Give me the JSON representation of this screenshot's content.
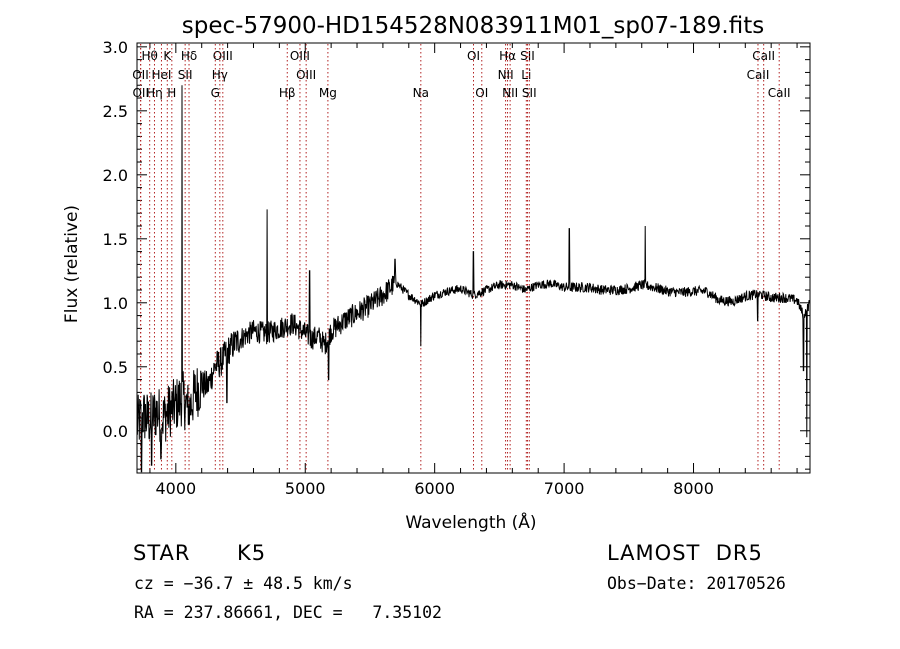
{
  "chart_data": {
    "type": "line",
    "title": "spec-57900-HD154528N083911M01_sp07-189.fits",
    "xlabel": "Wavelength (Å)",
    "ylabel": "Flux (relative)",
    "xlim": [
      3700,
      8900
    ],
    "ylim": [
      -0.33,
      3.03
    ],
    "xticks": [
      4000,
      5000,
      6000,
      7000,
      8000
    ],
    "yticks": [
      0.0,
      0.5,
      1.0,
      1.5,
      2.0,
      2.5,
      3.0
    ],
    "xtick_labels": [
      "4000",
      "5000",
      "6000",
      "7000",
      "8000"
    ],
    "ytick_labels": [
      "0.0",
      "0.5",
      "1.0",
      "1.5",
      "2.0",
      "2.5",
      "3.0"
    ],
    "grid": false,
    "line_colors": {
      "spectrum": "#000000",
      "lines": "#b22222"
    },
    "line_markers": [
      {
        "label": "Hθ",
        "wavelength": 3798,
        "row": 0
      },
      {
        "label": "K",
        "wavelength": 3934,
        "row": 0
      },
      {
        "label": "Hδ",
        "wavelength": 4102,
        "row": 0
      },
      {
        "label": "OIII",
        "wavelength": 4363,
        "row": 0
      },
      {
        "label": "OIII",
        "wavelength": 4959,
        "row": 0
      },
      {
        "label": "OI",
        "wavelength": 6300,
        "row": 0
      },
      {
        "label": "Hα",
        "wavelength": 6563,
        "row": 0
      },
      {
        "label": "SII",
        "wavelength": 6717,
        "row": 0
      },
      {
        "label": "CaII",
        "wavelength": 8542,
        "row": 0
      },
      {
        "label": "OII",
        "wavelength": 3727,
        "row": 1
      },
      {
        "label": "HeI",
        "wavelength": 3889,
        "row": 1
      },
      {
        "label": "SII",
        "wavelength": 4072,
        "row": 1
      },
      {
        "label": "Hγ",
        "wavelength": 4340,
        "row": 1
      },
      {
        "label": "OIII",
        "wavelength": 5007,
        "row": 1
      },
      {
        "label": "NII",
        "wavelength": 6548,
        "row": 1
      },
      {
        "label": "Li",
        "wavelength": 6708,
        "row": 1
      },
      {
        "label": "CaII",
        "wavelength": 8498,
        "row": 1
      },
      {
        "label": "OII",
        "wavelength": 3729,
        "row": 2
      },
      {
        "label": "Hη",
        "wavelength": 3835,
        "row": 2
      },
      {
        "label": "H",
        "wavelength": 3969,
        "row": 2
      },
      {
        "label": "G",
        "wavelength": 4305,
        "row": 2
      },
      {
        "label": "Hβ",
        "wavelength": 4861,
        "row": 2
      },
      {
        "label": "Mg",
        "wavelength": 5175,
        "row": 2
      },
      {
        "label": "Na",
        "wavelength": 5893,
        "row": 2
      },
      {
        "label": "OI",
        "wavelength": 6364,
        "row": 2
      },
      {
        "label": "NII",
        "wavelength": 6583,
        "row": 2
      },
      {
        "label": "SII",
        "wavelength": 6731,
        "row": 2
      },
      {
        "label": "CaII",
        "wavelength": 8662,
        "row": 2
      }
    ],
    "spectrum": {
      "name": "flux",
      "x": [
        3700,
        3750,
        3800,
        3850,
        3900,
        3950,
        4000,
        4050,
        4100,
        4150,
        4200,
        4250,
        4300,
        4350,
        4400,
        4450,
        4500,
        4600,
        4700,
        4800,
        4900,
        5000,
        5050,
        5100,
        5150,
        5200,
        5300,
        5400,
        5500,
        5600,
        5700,
        5800,
        5900,
        6000,
        6100,
        6200,
        6300,
        6400,
        6500,
        6600,
        6700,
        6800,
        6900,
        7000,
        7100,
        7200,
        7300,
        7400,
        7500,
        7600,
        7700,
        7800,
        7900,
        8000,
        8100,
        8200,
        8300,
        8400,
        8500,
        8600,
        8700,
        8800,
        8850,
        8900
      ],
      "y": [
        0.05,
        0.12,
        0.08,
        0.15,
        0.1,
        0.16,
        0.2,
        0.26,
        0.16,
        0.3,
        0.36,
        0.35,
        0.5,
        0.54,
        0.62,
        0.68,
        0.72,
        0.78,
        0.76,
        0.8,
        0.84,
        0.76,
        0.72,
        0.74,
        0.67,
        0.78,
        0.86,
        0.92,
        0.98,
        1.06,
        1.16,
        1.06,
        0.99,
        1.06,
        1.09,
        1.11,
        1.06,
        1.1,
        1.14,
        1.14,
        1.1,
        1.14,
        1.15,
        1.12,
        1.12,
        1.12,
        1.1,
        1.1,
        1.11,
        1.14,
        1.12,
        1.09,
        1.08,
        1.09,
        1.09,
        1.02,
        1.01,
        1.05,
        1.07,
        1.04,
        1.04,
        1.02,
        0.9,
        1.0
      ],
      "features": [
        {
          "x": 3735,
          "y": -0.32
        },
        {
          "x": 3812,
          "y": -0.27
        },
        {
          "x": 3885,
          "y": -0.22
        },
        {
          "x": 4048,
          "y": 2.7
        },
        {
          "x": 4098,
          "y": 0.05
        },
        {
          "x": 4395,
          "y": 0.22
        },
        {
          "x": 4705,
          "y": 1.73
        },
        {
          "x": 5033,
          "y": 1.25
        },
        {
          "x": 5180,
          "y": 0.4
        },
        {
          "x": 5693,
          "y": 1.34
        },
        {
          "x": 5893,
          "y": 0.66
        },
        {
          "x": 6300,
          "y": 1.4
        },
        {
          "x": 7040,
          "y": 1.58
        },
        {
          "x": 7627,
          "y": 1.6
        },
        {
          "x": 8495,
          "y": 0.86
        },
        {
          "x": 8850,
          "y": 0.47
        },
        {
          "x": 8875,
          "y": -0.05
        }
      ]
    }
  },
  "footer": {
    "object_class": "STAR",
    "subclass": "K5",
    "survey": "LAMOST  DR5",
    "redshift": "cz = −36.7 ± 48.5 km/s",
    "obs_date": "Obs−Date: 20170526",
    "coords": "RA = 237.86661, DEC =   7.35102"
  }
}
